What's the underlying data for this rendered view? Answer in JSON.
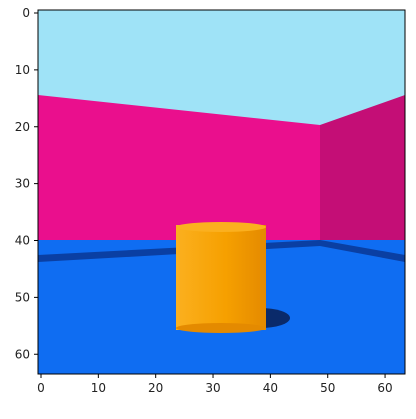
{
  "image": {
    "scene": "pixel-render-room-with-cylinder",
    "colors": {
      "sky": "#9fe3f7",
      "wall_left": "#ea0f8d",
      "wall_right": "#c40e76",
      "floor": "#0f6df2",
      "floor_dark": "#0a3fa3",
      "cylinder_light": "#fbb01f",
      "cylinder_mid": "#f6a000",
      "cylinder_dark": "#e48a00",
      "shadow": "#0a2a6a"
    }
  },
  "axes": {
    "x": {
      "range": [
        0,
        64
      ],
      "ticks": [
        0,
        10,
        20,
        30,
        40,
        50,
        60
      ]
    },
    "y": {
      "range": [
        0,
        64
      ],
      "ticks": [
        0,
        10,
        20,
        30,
        40,
        50,
        60
      ]
    }
  }
}
